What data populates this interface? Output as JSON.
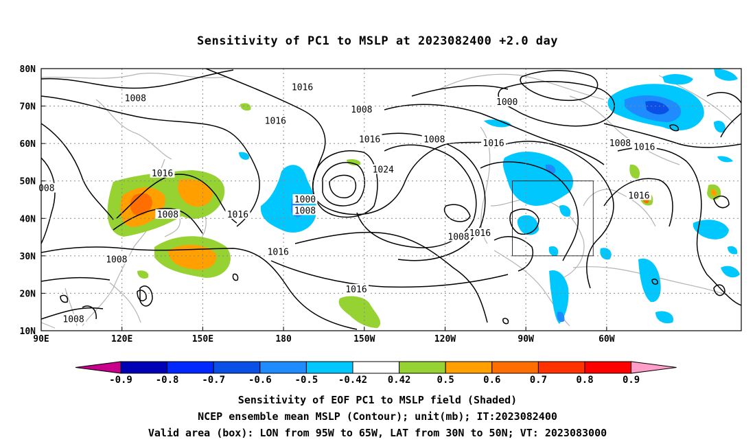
{
  "title": "Sensitivity of PC1 to MSLP at 2023082400 +2.0 day",
  "axes": {
    "lat_labels": [
      "80N",
      "70N",
      "60N",
      "50N",
      "40N",
      "30N",
      "20N",
      "10N"
    ],
    "lon_labels": [
      "90E",
      "120E",
      "150E",
      "180",
      "150W",
      "120W",
      "90W",
      "60W"
    ]
  },
  "contour_labels": [
    {
      "text": "1008",
      "lon": 125,
      "lat": 72
    },
    {
      "text": "1016",
      "lon": -173,
      "lat": 75
    },
    {
      "text": "1016",
      "lon": 177,
      "lat": 66
    },
    {
      "text": "1008",
      "lon": -151,
      "lat": 69
    },
    {
      "text": "1000",
      "lon": -97,
      "lat": 71
    },
    {
      "text": "1008",
      "lon": -124,
      "lat": 61
    },
    {
      "text": "1016",
      "lon": -102,
      "lat": 60
    },
    {
      "text": "1008",
      "lon": -55,
      "lat": 60
    },
    {
      "text": "1016",
      "lon": -46,
      "lat": 59
    },
    {
      "text": "1016",
      "lon": 135,
      "lat": 52
    },
    {
      "text": "1016",
      "lon": -148,
      "lat": 61
    },
    {
      "text": "1024",
      "lon": -143,
      "lat": 53
    },
    {
      "text": "008",
      "lon": 92,
      "lat": 48
    },
    {
      "text": "1000",
      "lon": -172,
      "lat": 45
    },
    {
      "text": "1008",
      "lon": -172,
      "lat": 42
    },
    {
      "text": "1016",
      "lon": 163,
      "lat": 41
    },
    {
      "text": "1008",
      "lon": 137,
      "lat": 41
    },
    {
      "text": "1016",
      "lon": -48,
      "lat": 46
    },
    {
      "text": "1016",
      "lon": -107,
      "lat": 36
    },
    {
      "text": "1008",
      "lon": -115,
      "lat": 35
    },
    {
      "text": "1016",
      "lon": 178,
      "lat": 31
    },
    {
      "text": "1008",
      "lon": 118,
      "lat": 29
    },
    {
      "text": "1016",
      "lon": -153,
      "lat": 21
    },
    {
      "text": "1008",
      "lon": 102,
      "lat": 13
    }
  ],
  "valid_box": {
    "lon_min": -95,
    "lon_max": -65,
    "lat_min": 30,
    "lat_max": 50
  },
  "colorbar": {
    "labels": [
      "-0.9",
      "-0.8",
      "-0.7",
      "-0.6",
      "-0.5",
      "-0.42",
      "0.42",
      "0.5",
      "0.6",
      "0.7",
      "0.8",
      "0.9"
    ],
    "colors": [
      "#c8008c",
      "#0000b4",
      "#0028ff",
      "#0a50e6",
      "#1e8cff",
      "#00c8ff",
      "#ffffff",
      "#96d232",
      "#ffa000",
      "#ff6e00",
      "#ff3200",
      "#ff0000",
      "#ff9ec8"
    ]
  },
  "caption": {
    "line1": "Sensitivity of EOF PC1 to MSLP field (Shaded)",
    "line2": "NCEP ensemble mean MSLP (Contour); unit(mb); IT:2023082400",
    "line3": "Valid area (box): LON from 95W to 65W, LAT from 30N to 50N; VT: 2023083000"
  }
}
